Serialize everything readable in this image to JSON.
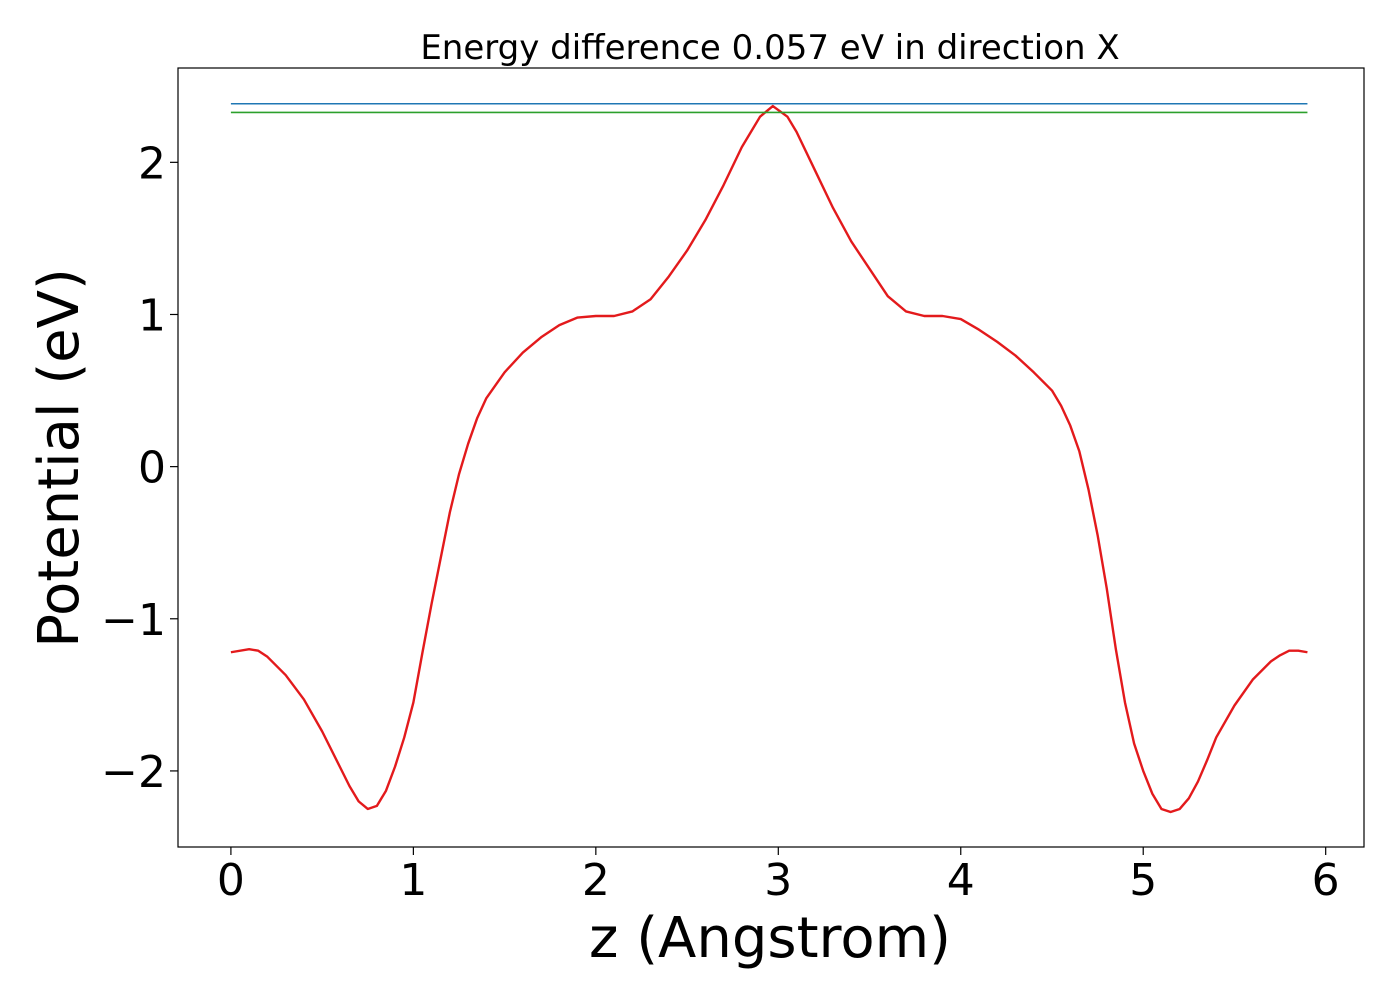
{
  "chart_data": {
    "type": "line",
    "title": "Energy difference 0.057 eV in direction X",
    "xlabel": "z (Angstrom)",
    "ylabel": "Potential (eV)",
    "xlim": [
      -0.29,
      6.21
    ],
    "ylim": [
      -2.5,
      2.62
    ],
    "x_ticks": [
      0,
      1,
      2,
      3,
      4,
      5,
      6
    ],
    "x_tick_labels": [
      "0",
      "1",
      "2",
      "3",
      "4",
      "5",
      "6"
    ],
    "y_ticks": [
      -2,
      -1,
      0,
      1,
      2
    ],
    "y_tick_labels": [
      "−2",
      "−1",
      "0",
      "1",
      "2"
    ],
    "grid": false,
    "colors": {
      "potential": "#e31a1c",
      "upper_level": "#1f77b4",
      "lower_level": "#2ca02c"
    },
    "series": [
      {
        "color_key": "potential",
        "x": [
          0.0,
          0.1,
          0.15,
          0.2,
          0.3,
          0.4,
          0.5,
          0.6,
          0.65,
          0.7,
          0.75,
          0.8,
          0.85,
          0.9,
          0.95,
          1.0,
          1.05,
          1.1,
          1.15,
          1.2,
          1.25,
          1.3,
          1.35,
          1.4,
          1.5,
          1.6,
          1.7,
          1.8,
          1.9,
          2.0,
          2.1,
          2.2,
          2.3,
          2.4,
          2.5,
          2.6,
          2.7,
          2.8,
          2.9,
          2.97,
          3.05,
          3.1,
          3.2,
          3.3,
          3.4,
          3.5,
          3.6,
          3.7,
          3.8,
          3.9,
          4.0,
          4.1,
          4.2,
          4.3,
          4.4,
          4.5,
          4.55,
          4.6,
          4.65,
          4.7,
          4.75,
          4.8,
          4.85,
          4.9,
          4.95,
          5.0,
          5.05,
          5.1,
          5.15,
          5.2,
          5.25,
          5.3,
          5.35,
          5.4,
          5.5,
          5.6,
          5.7,
          5.75,
          5.8,
          5.85,
          5.9
        ],
        "y": [
          -1.22,
          -1.2,
          -1.21,
          -1.25,
          -1.37,
          -1.53,
          -1.74,
          -1.98,
          -2.1,
          -2.2,
          -2.25,
          -2.23,
          -2.13,
          -1.97,
          -1.78,
          -1.55,
          -1.22,
          -0.9,
          -0.6,
          -0.3,
          -0.05,
          0.15,
          0.32,
          0.45,
          0.62,
          0.75,
          0.85,
          0.93,
          0.98,
          0.99,
          0.99,
          1.02,
          1.1,
          1.25,
          1.42,
          1.62,
          1.85,
          2.1,
          2.3,
          2.37,
          2.3,
          2.2,
          1.95,
          1.7,
          1.48,
          1.3,
          1.12,
          1.02,
          0.99,
          0.99,
          0.97,
          0.9,
          0.82,
          0.73,
          0.62,
          0.5,
          0.4,
          0.27,
          0.1,
          -0.15,
          -0.45,
          -0.8,
          -1.2,
          -1.55,
          -1.82,
          -2.0,
          -2.15,
          -2.25,
          -2.27,
          -2.25,
          -2.18,
          -2.07,
          -1.93,
          -1.78,
          -1.57,
          -1.4,
          -1.28,
          -1.24,
          -1.21,
          -1.21,
          -1.22
        ]
      },
      {
        "color_key": "upper_level",
        "x": [
          0.0,
          5.9
        ],
        "y": [
          2.385,
          2.385
        ]
      },
      {
        "color_key": "lower_level",
        "x": [
          0.0,
          5.9
        ],
        "y": [
          2.328,
          2.328
        ]
      }
    ]
  }
}
